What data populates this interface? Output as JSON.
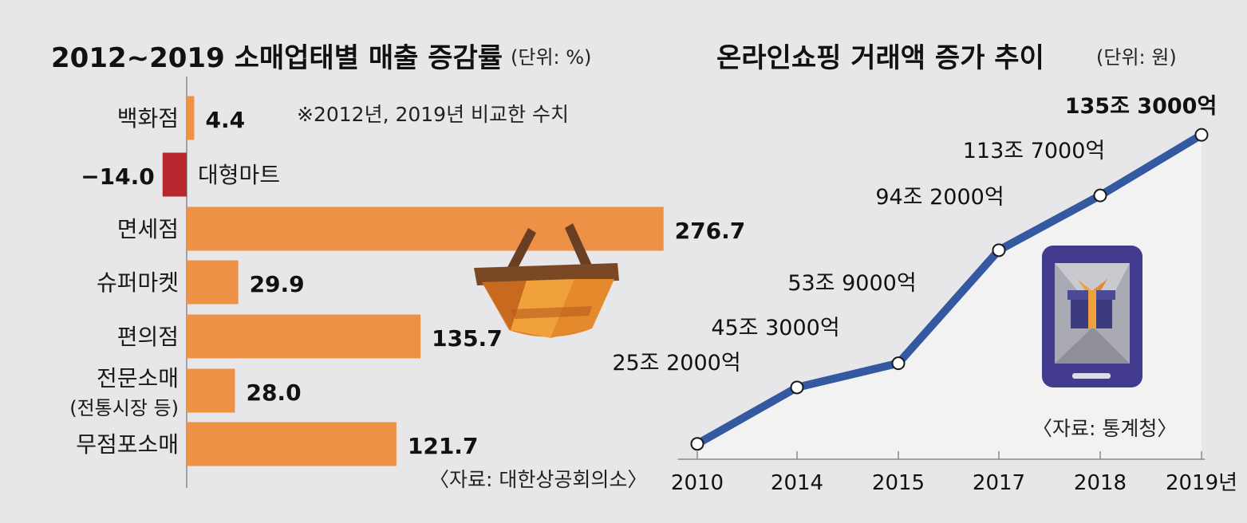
{
  "chart_data": [
    {
      "type": "bar",
      "title": "2012~2019 소매업태별 매출 증감률",
      "unit": "(단위: %)",
      "note": "※2012년, 2019년 비교한 수치",
      "source": "〈자료: 대한상공회의소〉",
      "categories": [
        "백화점",
        "대형마트",
        "면세점",
        "슈퍼마켓",
        "편의점",
        "전문소매",
        "무점포소매"
      ],
      "category_sublabels": [
        "",
        "",
        "",
        "",
        "",
        "(전통시장 등)",
        ""
      ],
      "values": [
        4.4,
        -14.0,
        276.7,
        29.9,
        135.7,
        28.0,
        121.7
      ],
      "value_labels": [
        "4.4",
        "−14.0",
        "276.7",
        "29.9",
        "135.7",
        "28.0",
        "121.7"
      ],
      "orientation": "horizontal",
      "colors": {
        "positive": "#ed9146",
        "negative": "#b8272e"
      }
    },
    {
      "type": "area",
      "title": "온라인쇼핑 거래액 증가 추이",
      "unit": "(단위: 원)",
      "source": "〈자료: 통계청〉",
      "categories": [
        "2010",
        "2014",
        "2015",
        "2017",
        "2018",
        "2019년"
      ],
      "values": [
        25.2,
        45.3,
        53.9,
        94.2,
        113.7,
        135.3
      ],
      "value_labels": [
        "25조 2000억",
        "45조 3000억",
        "53조 9000억",
        "94조 2000억",
        "113조 7000억",
        "135조 3000억"
      ],
      "value_unit": "조 원",
      "colors": {
        "line": "#3459a0",
        "fill": "#f2f2f3"
      }
    }
  ]
}
